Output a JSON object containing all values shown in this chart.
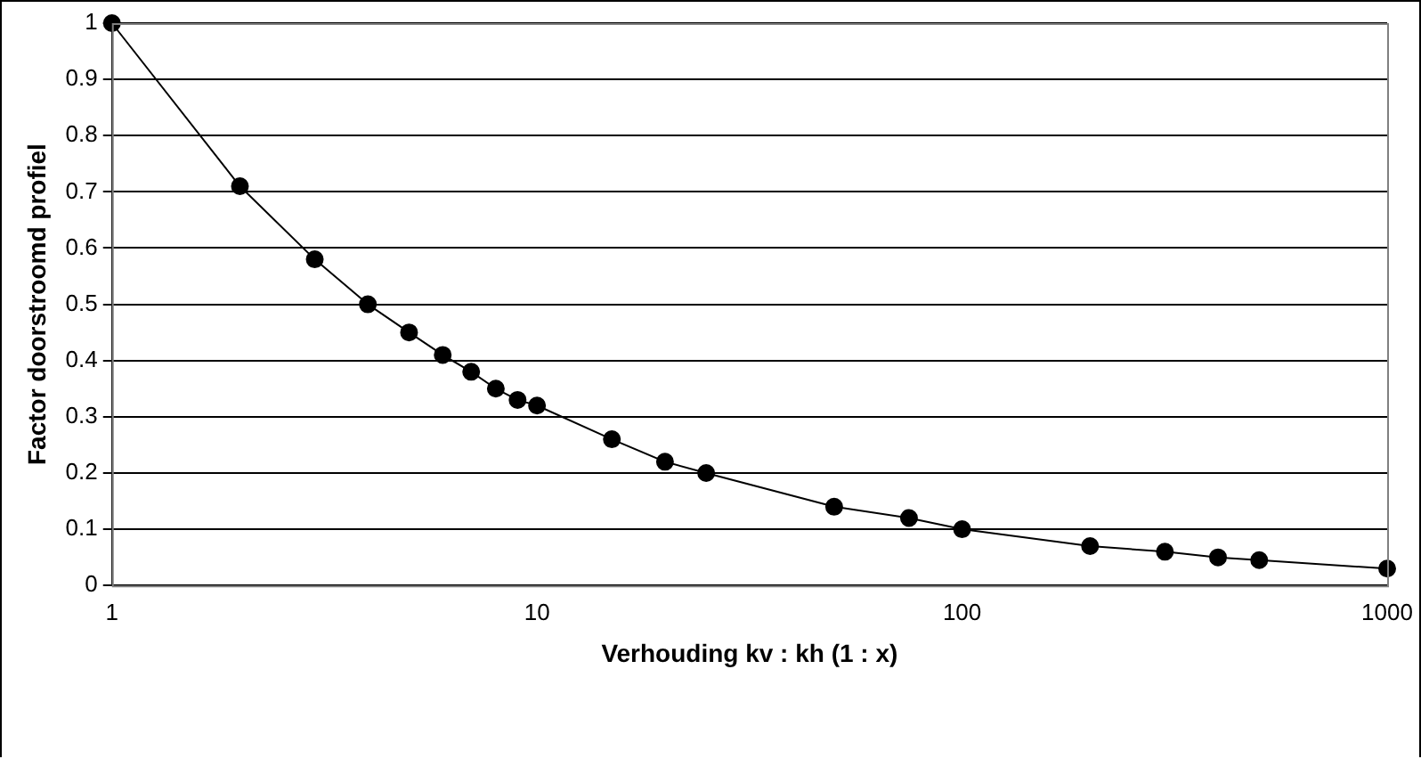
{
  "chart_data": {
    "type": "line",
    "xlabel": "Verhouding kv : kh (1 : x)",
    "ylabel": "Factor doorstroomd profiel",
    "x": [
      1,
      2,
      3,
      4,
      5,
      6,
      7,
      8,
      9,
      10,
      15,
      20,
      25,
      50,
      75,
      100,
      200,
      300,
      400,
      500,
      1000
    ],
    "series": [
      {
        "color": "#000000",
        "values": [
          1,
          0.71,
          0.58,
          0.5,
          0.45,
          0.41,
          0.38,
          0.35,
          0.33,
          0.32,
          0.26,
          0.22,
          0.2,
          0.14,
          0.12,
          0.1,
          0.07,
          0.06,
          0.05,
          0.045,
          0.03
        ]
      }
    ],
    "log": "x",
    "xlim": [
      1,
      1000
    ],
    "xticks": [
      1,
      10,
      100,
      1000
    ],
    "ylim": [
      0,
      1
    ],
    "yticks": [
      0,
      0.1,
      0.2,
      0.3,
      0.4,
      0.5,
      0.6,
      0.7,
      0.8,
      0.9,
      1
    ],
    "grid": "y",
    "legend": false,
    "marker": "circle",
    "line_style": "solid"
  }
}
